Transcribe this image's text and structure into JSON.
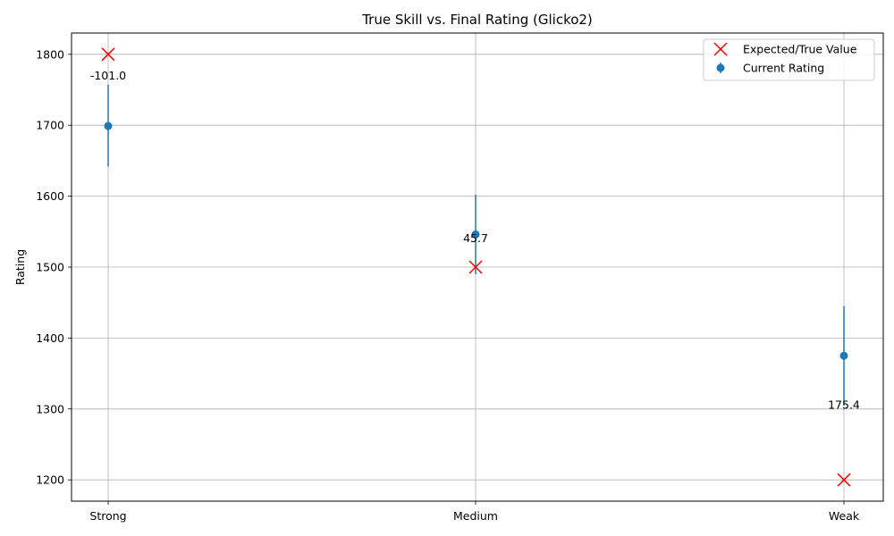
{
  "chart_data": {
    "type": "scatter",
    "title": "True Skill vs. Final Rating (Glicko2)",
    "xlabel": "",
    "ylabel": "Rating",
    "categories": [
      "Strong",
      "Medium",
      "Weak"
    ],
    "ylim": [
      1170,
      1830
    ],
    "yticks": [
      1200,
      1300,
      1400,
      1500,
      1600,
      1700,
      1800
    ],
    "grid": true,
    "legend_position": "top-right",
    "series": [
      {
        "name": "Expected/True Value",
        "marker": "x",
        "color": "#ff0000",
        "values": [
          1800,
          1500,
          1200
        ]
      },
      {
        "name": "Current Rating",
        "marker": "circle",
        "color": "#1f77b4",
        "values": [
          1699,
          1546,
          1375
        ],
        "error_low": [
          1642,
          1490,
          1305
        ],
        "error_high": [
          1757,
          1602,
          1445
        ]
      }
    ],
    "annotations": [
      {
        "category": "Strong",
        "y": 1770,
        "text": "-101.0"
      },
      {
        "category": "Medium",
        "y": 1541,
        "text": "45.7"
      },
      {
        "category": "Weak",
        "y": 1306,
        "text": "175.4"
      }
    ]
  }
}
